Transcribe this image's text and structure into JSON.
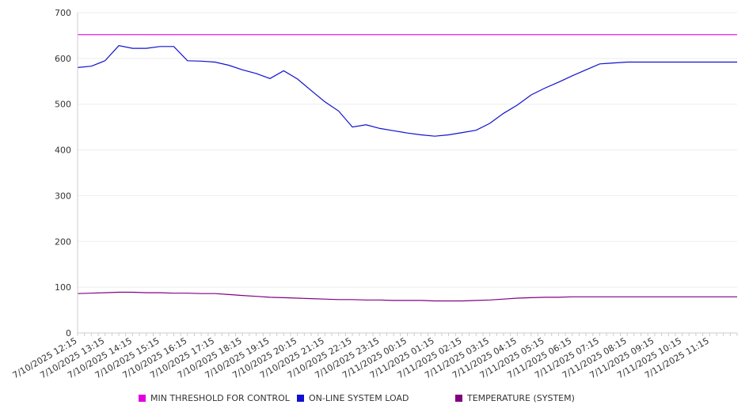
{
  "chart_data": {
    "type": "line",
    "title": "",
    "xlabel": "",
    "ylabel": "",
    "ylim": [
      0,
      700
    ],
    "yticks": [
      0,
      100,
      200,
      300,
      400,
      500,
      600,
      700
    ],
    "grid": true,
    "legend_position": "bottom",
    "x_tick_labels": [
      "7/10/2025 12:15",
      "7/10/2025 13:15",
      "7/10/2025 14:15",
      "7/10/2025 15:15",
      "7/10/2025 16:15",
      "7/10/2025 17:15",
      "7/10/2025 18:15",
      "7/10/2025 19:15",
      "7/10/2025 20:15",
      "7/10/2025 21:15",
      "7/10/2025 22:15",
      "7/10/2025 23:15",
      "7/11/2025 00:15",
      "7/11/2025 01:15",
      "7/11/2025 02:15",
      "7/11/2025 03:15",
      "7/11/2025 04:15",
      "7/11/2025 05:15",
      "7/11/2025 06:15",
      "7/11/2025 07:15",
      "7/11/2025 08:15",
      "7/11/2025 09:15",
      "7/11/2025 10:15",
      "7/11/2025 11:15"
    ],
    "x": [
      "7/10/2025 12:15",
      "7/10/2025 12:45",
      "7/10/2025 13:15",
      "7/10/2025 13:45",
      "7/10/2025 14:15",
      "7/10/2025 14:45",
      "7/10/2025 15:15",
      "7/10/2025 15:45",
      "7/10/2025 16:15",
      "7/10/2025 16:45",
      "7/10/2025 17:15",
      "7/10/2025 17:45",
      "7/10/2025 18:15",
      "7/10/2025 18:45",
      "7/10/2025 19:15",
      "7/10/2025 19:45",
      "7/10/2025 20:15",
      "7/10/2025 20:45",
      "7/10/2025 21:15",
      "7/10/2025 21:45",
      "7/10/2025 22:15",
      "7/10/2025 22:45",
      "7/10/2025 23:15",
      "7/10/2025 23:45",
      "7/11/2025 00:15",
      "7/11/2025 00:45",
      "7/11/2025 01:15",
      "7/11/2025 01:45",
      "7/11/2025 02:15",
      "7/11/2025 02:45",
      "7/11/2025 03:15",
      "7/11/2025 03:45",
      "7/11/2025 04:15",
      "7/11/2025 04:45",
      "7/11/2025 05:15",
      "7/11/2025 05:45",
      "7/11/2025 06:15",
      "7/11/2025 06:45",
      "7/11/2025 07:15",
      "7/11/2025 07:45",
      "7/11/2025 08:15",
      "7/11/2025 08:45",
      "7/11/2025 09:15",
      "7/11/2025 09:45",
      "7/11/2025 10:15",
      "7/11/2025 10:45",
      "7/11/2025 11:15",
      "7/11/2025 11:45"
    ],
    "series": [
      {
        "name": "MIN THRESHOLD FOR CONTROL",
        "color": "#e000e0",
        "values": [
          652,
          652,
          652,
          652,
          652,
          652,
          652,
          652,
          652,
          652,
          652,
          652,
          652,
          652,
          652,
          652,
          652,
          652,
          652,
          652,
          652,
          652,
          652,
          652,
          652,
          652,
          652,
          652,
          652,
          652,
          652,
          652,
          652,
          652,
          652,
          652,
          652,
          652,
          652,
          652,
          652,
          652,
          652,
          652,
          652,
          652,
          652,
          652
        ]
      },
      {
        "name": "ON-LINE SYSTEM LOAD",
        "color": "#1010d0",
        "values": [
          580,
          583,
          595,
          628,
          622,
          622,
          626,
          626,
          595,
          594,
          592,
          585,
          575,
          567,
          556,
          573,
          555,
          530,
          505,
          485,
          450,
          455,
          447,
          442,
          437,
          433,
          430,
          433,
          438,
          443,
          458,
          480,
          498,
          520,
          535,
          548,
          562,
          575,
          588,
          590,
          592,
          592,
          592,
          592,
          592,
          592,
          592,
          592
        ]
      },
      {
        "name": "TEMPERATURE (SYSTEM)",
        "color": "#800080",
        "values": [
          86,
          87,
          88,
          89,
          89,
          88,
          88,
          87,
          87,
          86,
          86,
          84,
          82,
          80,
          78,
          77,
          76,
          75,
          74,
          73,
          73,
          72,
          72,
          71,
          71,
          71,
          70,
          70,
          70,
          71,
          72,
          74,
          76,
          77,
          78,
          78,
          79,
          79,
          79,
          79,
          79,
          79,
          79,
          79,
          79,
          79,
          79,
          79
        ]
      }
    ]
  }
}
